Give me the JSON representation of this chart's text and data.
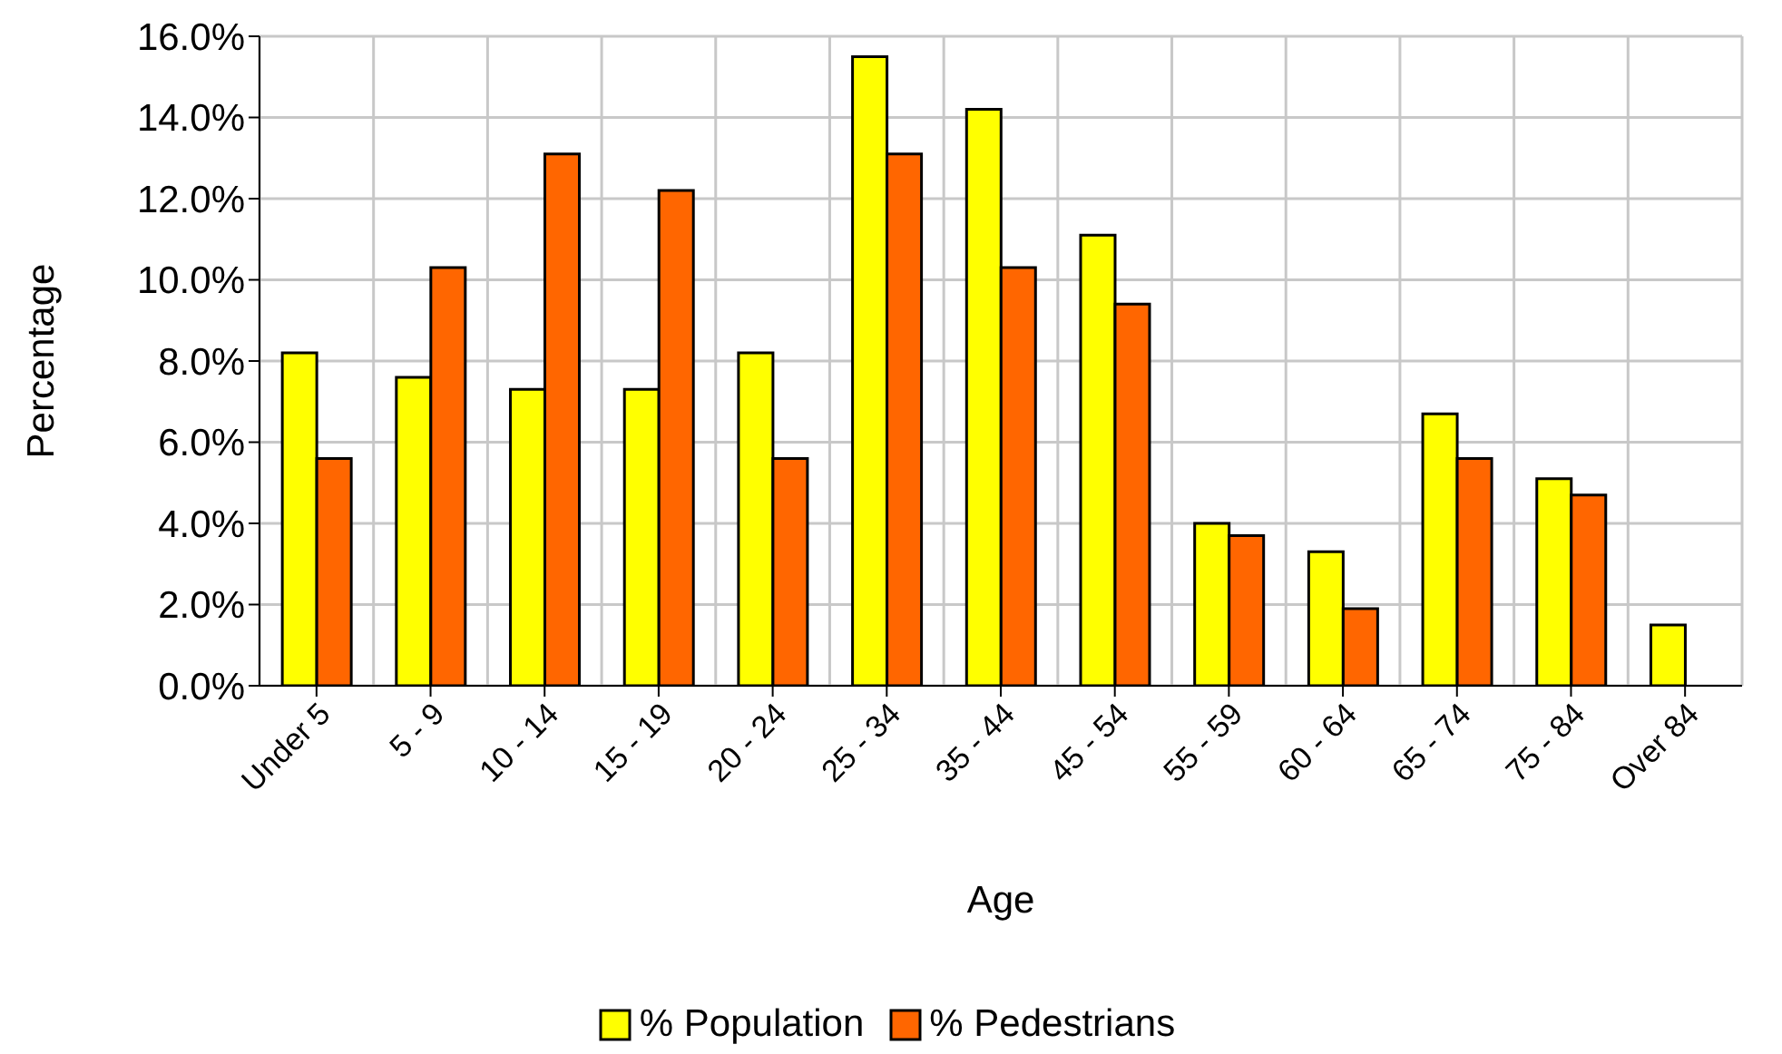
{
  "chart_data": {
    "type": "bar",
    "xlabel": "Age",
    "ylabel": "Percentage",
    "categories": [
      "Under 5",
      "5 - 9",
      "10 - 14",
      "15 - 19",
      "20 - 24",
      "25 - 34",
      "35 - 44",
      "45 - 54",
      "55 - 59",
      "60 - 64",
      "65 - 74",
      "75 - 84",
      "Over 84"
    ],
    "series": [
      {
        "name": "% Population",
        "color": "#ffff00",
        "values": [
          8.2,
          7.6,
          7.3,
          7.3,
          8.2,
          15.5,
          14.2,
          11.1,
          4.0,
          3.3,
          6.7,
          5.1,
          1.5
        ]
      },
      {
        "name": "% Pedestrians",
        "color": "#ff6600",
        "values": [
          5.6,
          10.3,
          13.1,
          12.2,
          5.6,
          13.1,
          10.3,
          9.4,
          3.7,
          1.9,
          5.6,
          4.7,
          0.0
        ]
      }
    ],
    "ylim": [
      0,
      16
    ],
    "yticks": [
      {
        "value": 0,
        "label": "0.0%"
      },
      {
        "value": 2,
        "label": "2.0%"
      },
      {
        "value": 4,
        "label": "4.0%"
      },
      {
        "value": 6,
        "label": "6.0%"
      },
      {
        "value": 8,
        "label": "8.0%"
      },
      {
        "value": 10,
        "label": "10.0%"
      },
      {
        "value": 12,
        "label": "12.0%"
      },
      {
        "value": 14,
        "label": "14.0%"
      },
      {
        "value": 16,
        "label": "16.0%"
      }
    ],
    "grid": true,
    "legend": "bottom"
  }
}
